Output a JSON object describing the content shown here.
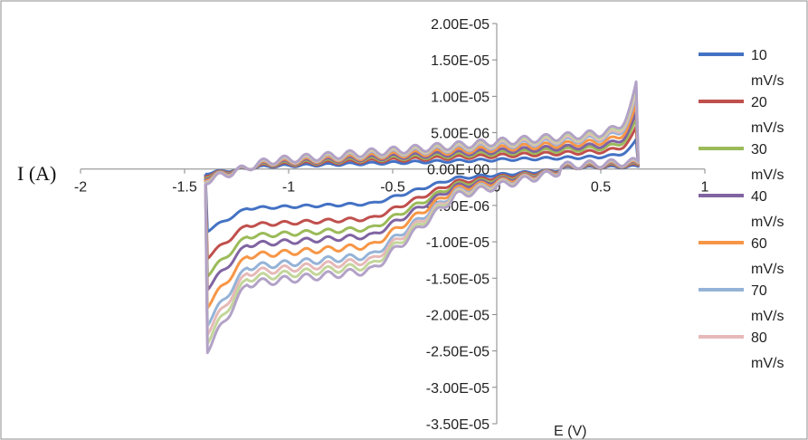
{
  "chart_data": {
    "type": "line",
    "xlabel": "E (V)",
    "ylabel": "I (A)",
    "xlim": [
      -2,
      1
    ],
    "ylim": [
      -3.5e-05,
      2e-05
    ],
    "x_ticks": [
      "-2",
      "-1.5",
      "-1",
      "-0.5",
      "0",
      "0.5",
      "1"
    ],
    "y_ticks": [
      "2.00E-05",
      "1.50E-05",
      "1.00E-05",
      "5.00E-06",
      "0.00E+00",
      "-5.00E-06",
      "-1.00E-05",
      "-1.50E-05",
      "-2.00E-05",
      "-2.50E-05",
      "-3.00E-05",
      "-3.50E-05"
    ],
    "legend_position": "right",
    "series": [
      {
        "name": "10\nmV/s",
        "color": "#4472C4",
        "s": 0.7
      },
      {
        "name": "20\nmV/s",
        "color": "#C0504D",
        "s": 1.0
      },
      {
        "name": "30\nmV/s",
        "color": "#9BBB59",
        "s": 1.2
      },
      {
        "name": "40\nmV/s",
        "color": "#8064A2",
        "s": 1.35
      },
      {
        "name": "60\nmV/s",
        "color": "#F79646",
        "s": 1.55
      },
      {
        "name": "70\nmV/s",
        "color": "#95B3D7",
        "s": 1.75
      },
      {
        "name": "80\nmV/s",
        "color": "#E6B9B8",
        "s": 1.85
      },
      {
        "name": "",
        "color": "#C3D69B",
        "s": 1.95
      },
      {
        "name": "",
        "color": "#B3A2C7",
        "s": 2.05
      }
    ]
  }
}
